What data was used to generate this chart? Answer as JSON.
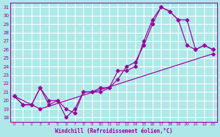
{
  "xlabel": "Windchill (Refroidissement éolien,°C)",
  "background_color": "#aee8e8",
  "grid_color": "#ffffff",
  "line_color": "#990099",
  "x_ticks": [
    0,
    1,
    2,
    3,
    4,
    5,
    6,
    7,
    8,
    9,
    10,
    11,
    12,
    13,
    14,
    15,
    16,
    17,
    18,
    19,
    20,
    21,
    22,
    23
  ],
  "y_ticks": [
    18,
    19,
    20,
    21,
    22,
    23,
    24,
    25,
    26,
    27,
    28,
    29,
    30,
    31
  ],
  "xlim": [
    -0.5,
    23.5
  ],
  "ylim": [
    17.5,
    31.5
  ],
  "line1_x": [
    0,
    1,
    2,
    3,
    4,
    5,
    6,
    7,
    8,
    9,
    10,
    11,
    12,
    13,
    14,
    15,
    16,
    17,
    18,
    19,
    20,
    21,
    22,
    23
  ],
  "line1_y": [
    20.5,
    19.5,
    19.5,
    21.5,
    19.5,
    20.0,
    18.0,
    19.0,
    21.0,
    21.0,
    21.0,
    21.5,
    23.5,
    23.5,
    24.0,
    27.0,
    29.5,
    31.0,
    30.5,
    29.5,
    26.5,
    26.0,
    26.5,
    26.0
  ],
  "line2_x": [
    0,
    1,
    2,
    3,
    4,
    5,
    6,
    7,
    8,
    9,
    10,
    11,
    12,
    13,
    14,
    15,
    16,
    17,
    18,
    19,
    20,
    21,
    22,
    23
  ],
  "line2_y": [
    20.5,
    19.5,
    19.5,
    21.5,
    20.0,
    20.0,
    19.0,
    18.5,
    21.0,
    21.0,
    21.5,
    21.5,
    22.5,
    24.0,
    24.5,
    26.5,
    29.0,
    31.0,
    30.5,
    29.5,
    29.5,
    26.0,
    26.5,
    26.0
  ],
  "line3_x": [
    0,
    3,
    23
  ],
  "line3_y": [
    20.5,
    19.0,
    25.5
  ]
}
